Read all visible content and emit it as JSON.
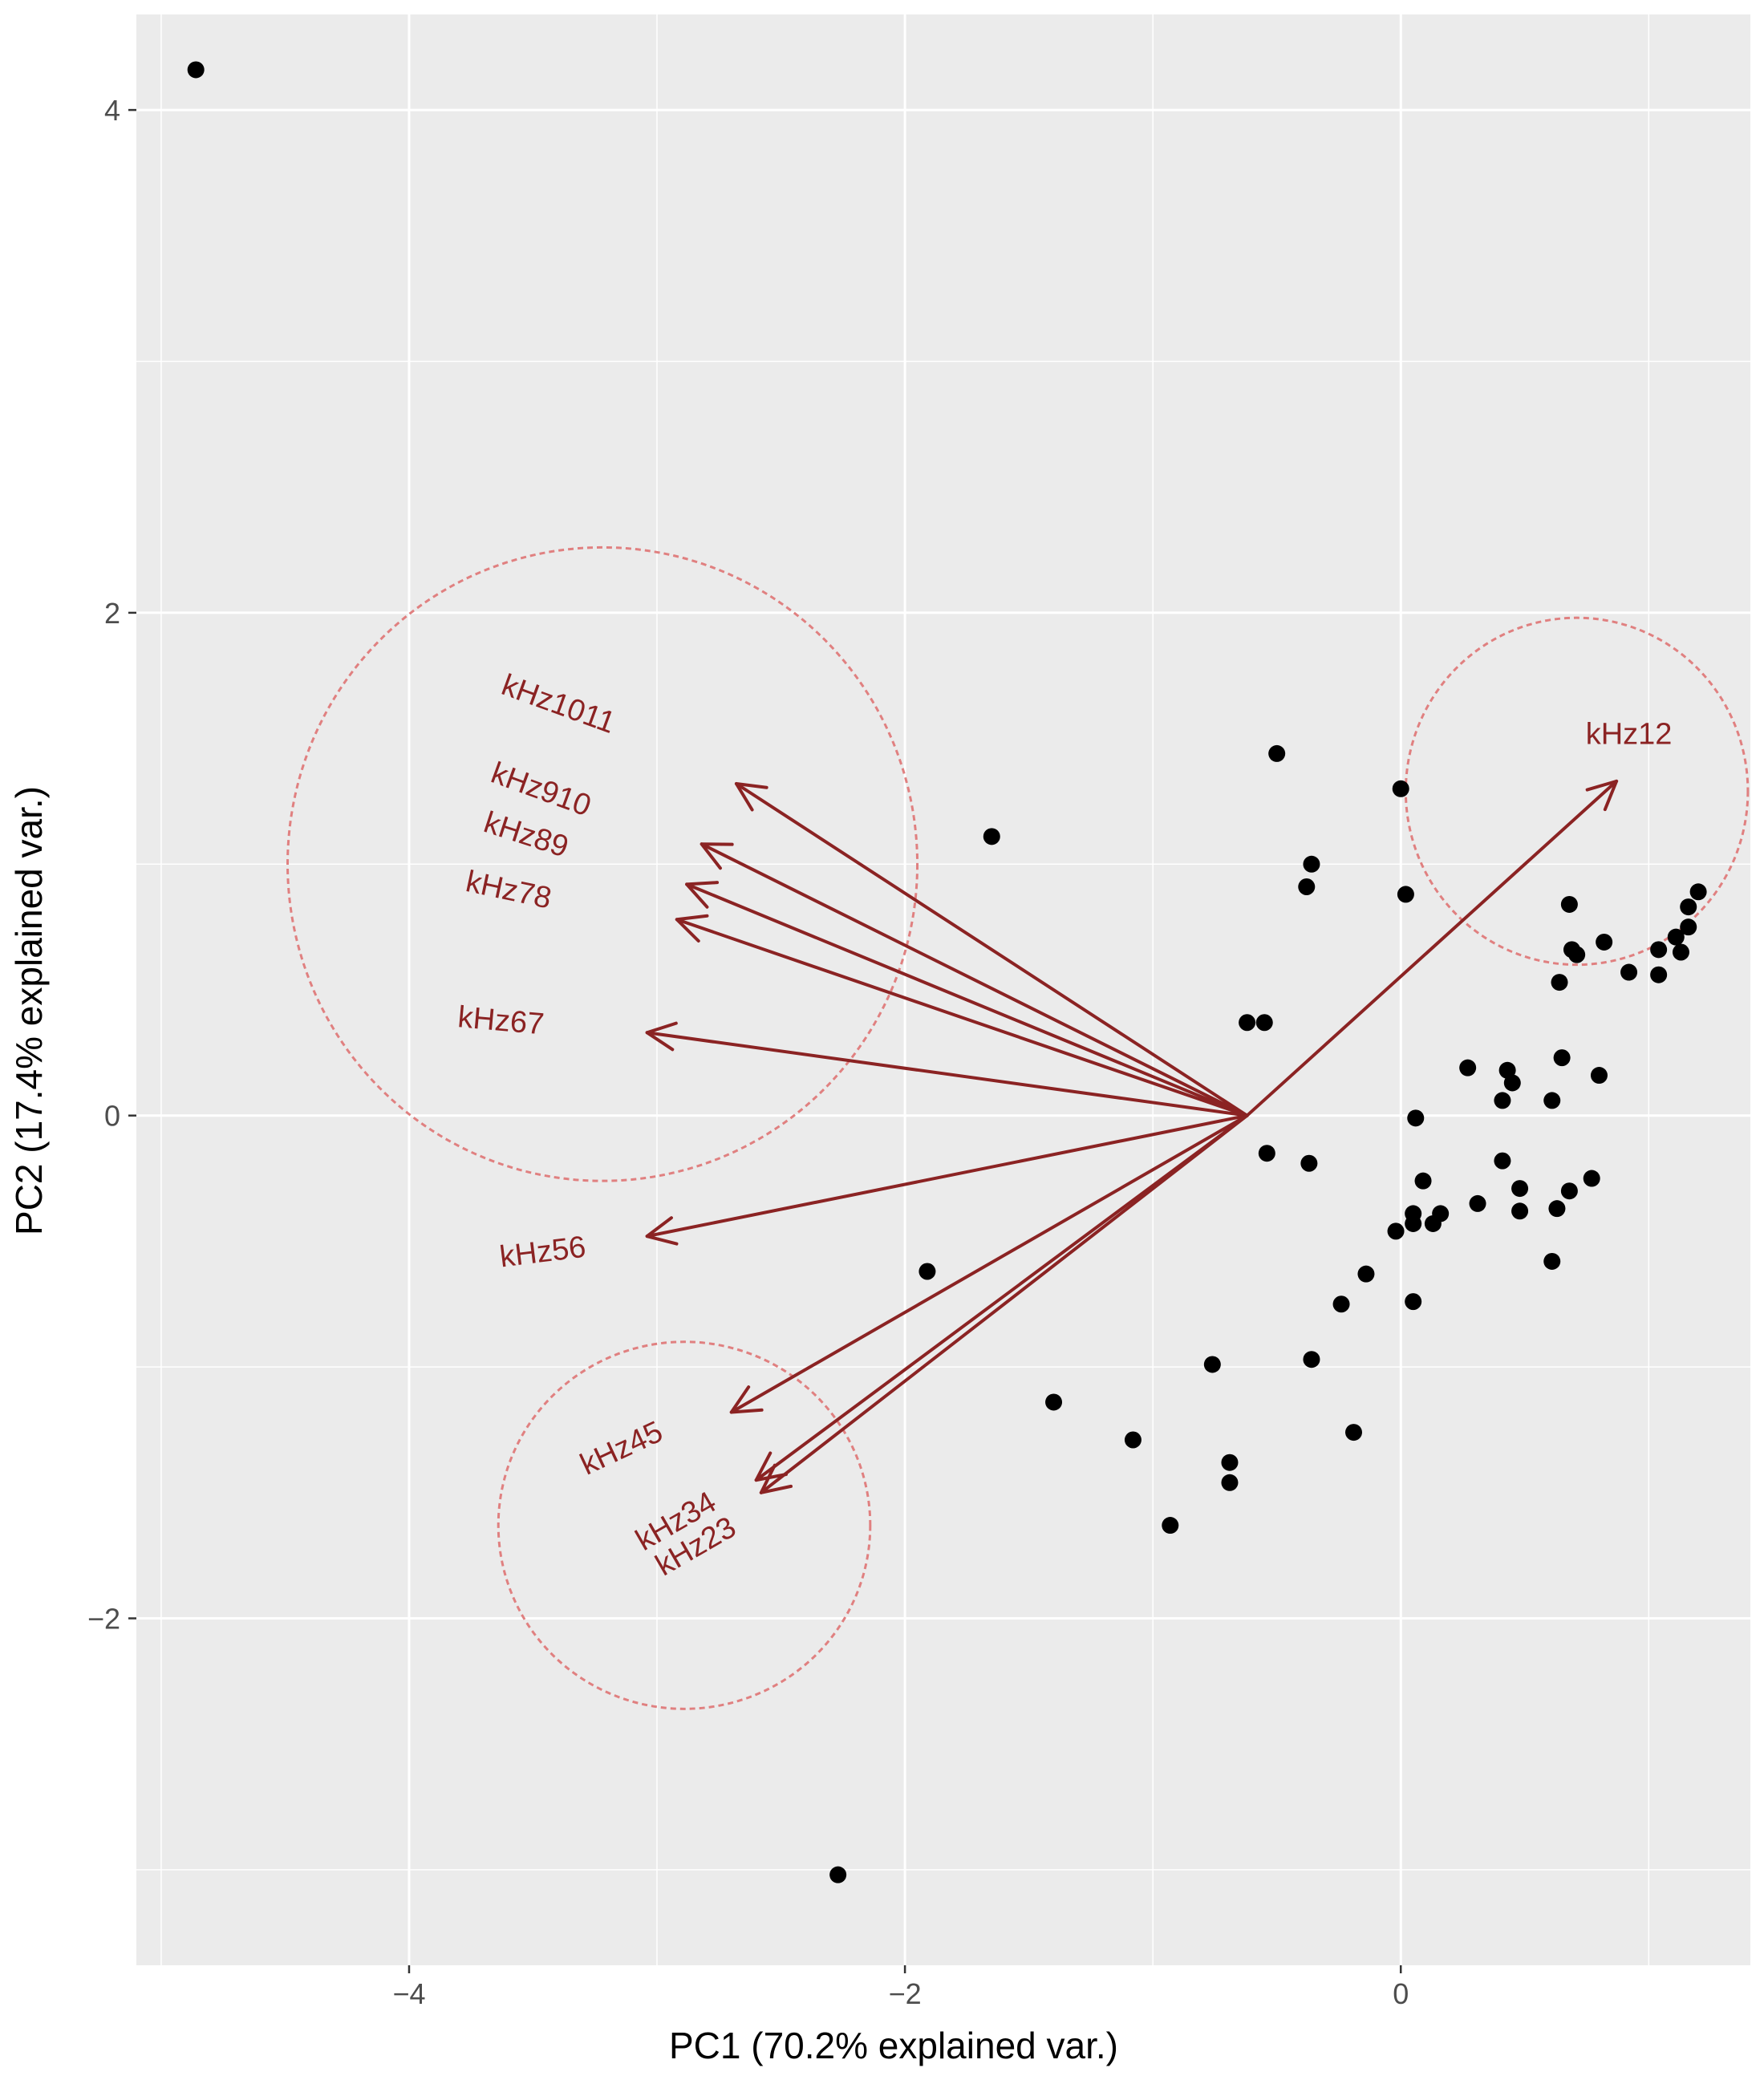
{
  "chart_data": {
    "type": "scatter",
    "subtype": "pca-biplot",
    "xlabel": "PC1 (70.2% explained var.)",
    "ylabel": "PC2 (17.4% explained var.)",
    "xlim": [
      -5.1,
      1.41
    ],
    "ylim": [
      -3.38,
      4.38
    ],
    "x_ticks": [
      {
        "value": -4,
        "label": "−4"
      },
      {
        "value": -2,
        "label": "−2"
      },
      {
        "value": 0,
        "label": "0"
      }
    ],
    "y_ticks": [
      {
        "value": -2,
        "label": "−2"
      },
      {
        "value": 0,
        "label": "0"
      },
      {
        "value": 2,
        "label": "2"
      },
      {
        "value": 4,
        "label": "4"
      }
    ],
    "grid": true,
    "colors": {
      "panel": "#ebebeb",
      "grid": "#ffffff",
      "point": "#000000",
      "arrow": "#8b2323",
      "circle": "#e08080"
    },
    "arrow_origin": [
      -0.62,
      0.0
    ],
    "loadings": [
      {
        "label": "kHz12",
        "x_end": 0.87,
        "y_end": 1.33,
        "label_x": 0.92,
        "label_y": 1.51,
        "angle": 0
      },
      {
        "label": "kHz1011",
        "x_end": -2.68,
        "y_end": 1.32,
        "label_x": -3.4,
        "label_y": 1.63,
        "angle": 20
      },
      {
        "label": "kHz910",
        "x_end": -2.82,
        "y_end": 1.08,
        "label_x": -3.47,
        "label_y": 1.29,
        "angle": 20
      },
      {
        "label": "kHz89",
        "x_end": -2.88,
        "y_end": 0.92,
        "label_x": -3.53,
        "label_y": 1.11,
        "angle": 18
      },
      {
        "label": "kHz78",
        "x_end": -2.92,
        "y_end": 0.78,
        "label_x": -3.6,
        "label_y": 0.89,
        "angle": 12
      },
      {
        "label": "kHz67",
        "x_end": -3.04,
        "y_end": 0.33,
        "label_x": -3.63,
        "label_y": 0.37,
        "angle": 5
      },
      {
        "label": "kHz56",
        "x_end": -3.04,
        "y_end": -0.48,
        "label_x": -3.46,
        "label_y": -0.55,
        "angle": -7
      },
      {
        "label": "kHz45",
        "x_end": -2.7,
        "y_end": -1.18,
        "label_x": -3.14,
        "label_y": -1.33,
        "angle": -25
      },
      {
        "label": "kHz34",
        "x_end": -2.6,
        "y_end": -1.45,
        "label_x": -2.92,
        "label_y": -1.62,
        "angle": -30
      },
      {
        "label": "kHz23",
        "x_end": -2.58,
        "y_end": -1.5,
        "label_x": -2.84,
        "label_y": -1.72,
        "angle": -30
      }
    ],
    "ellipses": [
      {
        "cx": -3.22,
        "cy": 1.0,
        "rx": 1.27,
        "ry": 1.26
      },
      {
        "cx": 0.71,
        "cy": 1.29,
        "rx": 0.69,
        "ry": 0.69
      },
      {
        "cx": -2.89,
        "cy": -1.63,
        "rx": 0.75,
        "ry": 0.73
      }
    ],
    "points": [
      [
        -4.86,
        4.16
      ],
      [
        -2.27,
        -3.02
      ],
      [
        -1.65,
        1.11
      ],
      [
        -1.91,
        -0.62
      ],
      [
        -1.4,
        -1.14
      ],
      [
        -1.08,
        -1.29
      ],
      [
        -0.93,
        -1.63
      ],
      [
        -0.76,
        -0.99
      ],
      [
        -0.69,
        -1.38
      ],
      [
        -0.69,
        -1.46
      ],
      [
        -0.62,
        0.37
      ],
      [
        -0.55,
        0.37
      ],
      [
        -0.54,
        -0.15
      ],
      [
        -0.5,
        1.44
      ],
      [
        -0.38,
        0.91
      ],
      [
        -0.36,
        1.0
      ],
      [
        -0.37,
        -0.19
      ],
      [
        -0.36,
        -0.97
      ],
      [
        -0.24,
        -0.75
      ],
      [
        -0.19,
        -1.26
      ],
      [
        -0.14,
        -0.63
      ],
      [
        0.0,
        1.3
      ],
      [
        0.02,
        0.88
      ],
      [
        -0.02,
        -0.46
      ],
      [
        0.06,
        -0.01
      ],
      [
        0.05,
        -0.39
      ],
      [
        0.05,
        -0.43
      ],
      [
        0.05,
        -0.74
      ],
      [
        0.09,
        -0.26
      ],
      [
        0.13,
        -0.43
      ],
      [
        0.16,
        -0.39
      ],
      [
        0.27,
        0.19
      ],
      [
        0.31,
        -0.35
      ],
      [
        0.41,
        0.06
      ],
      [
        0.41,
        -0.18
      ],
      [
        0.43,
        0.18
      ],
      [
        0.45,
        0.13
      ],
      [
        0.48,
        -0.29
      ],
      [
        0.48,
        -0.38
      ],
      [
        0.61,
        0.06
      ],
      [
        0.61,
        -0.58
      ],
      [
        0.63,
        -0.37
      ],
      [
        0.64,
        0.53
      ],
      [
        0.65,
        0.23
      ],
      [
        0.68,
        -0.3
      ],
      [
        0.68,
        0.84
      ],
      [
        0.69,
        0.66
      ],
      [
        0.71,
        0.64
      ],
      [
        0.77,
        -0.25
      ],
      [
        0.8,
        0.16
      ],
      [
        0.82,
        0.69
      ],
      [
        0.92,
        0.57
      ],
      [
        1.04,
        0.56
      ],
      [
        1.04,
        0.66
      ],
      [
        1.11,
        0.71
      ],
      [
        1.13,
        0.65
      ],
      [
        1.16,
        0.75
      ],
      [
        1.16,
        0.83
      ],
      [
        1.2,
        0.89
      ]
    ]
  }
}
